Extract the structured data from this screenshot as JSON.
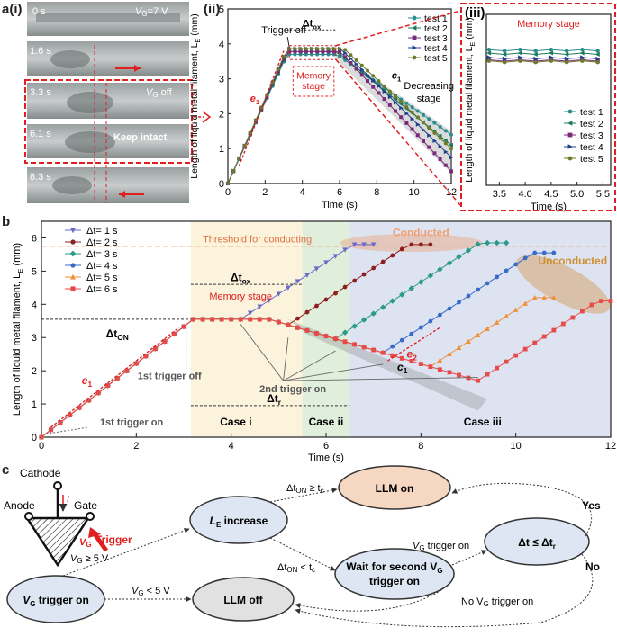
{
  "panel_labels": {
    "a1": "a(i)",
    "a2": "(ii)",
    "a3": "(iii)",
    "b": "b",
    "c": "c"
  },
  "photos": {
    "frames": [
      "0 s",
      "1.6 s",
      "3.3 s",
      "6.1 s",
      "8.3 s"
    ],
    "voltage_label": "V",
    "voltage_sub": "G",
    "voltage_value": "=7 V",
    "off_label": "V",
    "off_sub": "G",
    "off_text": " off",
    "keep_text": "Keep intact"
  },
  "chart_data": [
    {
      "id": "a_ii",
      "type": "line",
      "title": "",
      "xlabel": "Time (s)",
      "ylabel": "Length of liquid metal filament, L",
      "ylabel_sub": "E",
      "ylabel_unit": " (mm)",
      "xlim": [
        0,
        12
      ],
      "ylim": [
        0,
        5
      ],
      "xticks": [
        0,
        2,
        4,
        6,
        8,
        10,
        12
      ],
      "yticks": [
        0,
        1,
        2,
        3,
        4,
        5
      ],
      "legend_position": "top-right",
      "annotations": {
        "trigger_off": "Trigger off",
        "dtox": "Δt",
        "dtox_sub": "ox",
        "memory": "Memory",
        "stage": "stage",
        "c1": "c",
        "c1_sub": "1",
        "e1": "e",
        "e1_sub": "1",
        "decreasing": "Decreasing",
        "decreasing2": "stage"
      },
      "series": [
        {
          "name": "test 1",
          "color": "#2a8c8c",
          "marker": "circle",
          "end": 1.4
        },
        {
          "name": "test 2",
          "color": "#1a7a5a",
          "marker": "tri-left",
          "end": 1.1
        },
        {
          "name": "test 3",
          "color": "#7a2a7a",
          "marker": "square",
          "end": 0.35
        },
        {
          "name": "test 4",
          "color": "#1e3f8c",
          "marker": "tri-right",
          "end": 0.75
        },
        {
          "name": "test 5",
          "color": "#6e7a2a",
          "marker": "circle",
          "end": 1.0
        }
      ]
    },
    {
      "id": "a_iii",
      "type": "line",
      "title": "Memory stage",
      "xlabel": "Time (s)",
      "ylabel": "Length of liquid metal filament, L",
      "ylabel_sub": "E",
      "ylabel_unit": " (mm)",
      "xlim": [
        3.25,
        5.65
      ],
      "ylim": [
        0,
        5
      ],
      "xticks": [
        3.5,
        4.0,
        4.5,
        5.0,
        5.5
      ],
      "legend_position": "bottom-right",
      "series": [
        {
          "name": "test 1",
          "color": "#2a8c8c",
          "marker": "circle",
          "y": 3.95
        },
        {
          "name": "test 2",
          "color": "#1a7a5a",
          "marker": "tri-left",
          "y": 3.85
        },
        {
          "name": "test 3",
          "color": "#7a2a7a",
          "marker": "square",
          "y": 3.65
        },
        {
          "name": "test 4",
          "color": "#1e3f8c",
          "marker": "tri-right",
          "y": 3.72
        },
        {
          "name": "test 5",
          "color": "#6e7a2a",
          "marker": "circle",
          "y": 3.62
        }
      ]
    },
    {
      "id": "b",
      "type": "line",
      "xlabel": "Time (s)",
      "ylabel": "Length of liquid metal filament, L",
      "ylabel_sub": "E",
      "ylabel_unit": " (mm)",
      "xlim": [
        0,
        12
      ],
      "ylim": [
        0,
        6.5
      ],
      "xticks": [
        0,
        2,
        4,
        6,
        8,
        10,
        12
      ],
      "yticks": [
        0,
        1,
        2,
        3,
        4,
        5,
        6
      ],
      "legend_position": "top-left",
      "threshold": 5.75,
      "threshold_label": "Threshold for conducting",
      "annotations": {
        "dton": "Δt",
        "dton_sub": "ON",
        "dtox": "Δt",
        "dtox_sub": "ox",
        "memory": "Memory stage",
        "e1": "e",
        "e1_sub": "1",
        "e2": "e",
        "e2_sub": "2",
        "c1": "c",
        "c1_sub": "1",
        "first_off": "1st trigger off",
        "second_on": "2nd trigger on",
        "first_on": "1st trigger on",
        "dtr": "Δt",
        "dtr_sub": "r",
        "case_i": "Case i",
        "case_ii": "Case ii",
        "case_iii": "Case iii",
        "conducted": "Conducted",
        "unconducted": "Unconducted"
      },
      "series": [
        {
          "name": "Δt= 1 s",
          "dt": 1,
          "color": "#6a6ac8",
          "marker": "tri-down",
          "end": 5.8
        },
        {
          "name": "Δt= 2 s",
          "dt": 2,
          "color": "#8c2020",
          "marker": "circle",
          "end": 5.8
        },
        {
          "name": "Δt= 3 s",
          "dt": 3,
          "color": "#2a9a8a",
          "marker": "diamond",
          "end": 5.85
        },
        {
          "name": "Δt= 4 s",
          "dt": 4,
          "color": "#3a6ac8",
          "marker": "circle",
          "end": 5.55
        },
        {
          "name": "Δt= 5 s",
          "dt": 5,
          "color": "#f0903a",
          "marker": "tri-up",
          "end": 4.2
        },
        {
          "name": "Δt= 6 s",
          "dt": 6,
          "color": "#e84a4a",
          "marker": "square",
          "end": 4.1
        }
      ]
    }
  ],
  "flowchart": {
    "circuit": {
      "cathode": "Cathode",
      "anode": "Anode",
      "gate": "Gate",
      "vg": "V",
      "vg_sub": "G",
      "trigger": "Trigger",
      "i": "I"
    },
    "nodes": {
      "vg_trigger": "V",
      "vg_trigger_sub": "G",
      "vg_trigger_rest": " trigger on",
      "le_increase": "L",
      "le_increase_sub": "E",
      "le_increase_rest": " increase",
      "llm_on": "LLM on",
      "llm_off": "LLM off",
      "wait": "Wait for second V",
      "wait_sub": "G",
      "wait_line2": "trigger on",
      "condition": "Δt ≤ Δt",
      "condition_sub": "r"
    },
    "edges": {
      "ge5": "V",
      "ge5_sub": "G",
      "ge5_rest": " ≥ 5 V",
      "lt5": "V",
      "lt5_sub": "G",
      "lt5_rest": " < 5 V",
      "dton_ge": "Δt",
      "dton_ge_sub": "ON",
      "dton_ge_rest": " ≥ t",
      "dton_ge_sub2": "c",
      "dton_lt": "Δt",
      "dton_lt_sub": "ON",
      "dton_lt_rest": " < t",
      "dton_lt_sub2": "c",
      "vg_on": "V",
      "vg_on_sub": "G",
      "vg_on_rest": " trigger on",
      "no_vg": "No V",
      "no_vg_sub": "G",
      "no_vg_rest": " trigger on",
      "yes": "Yes",
      "no": "No"
    }
  }
}
